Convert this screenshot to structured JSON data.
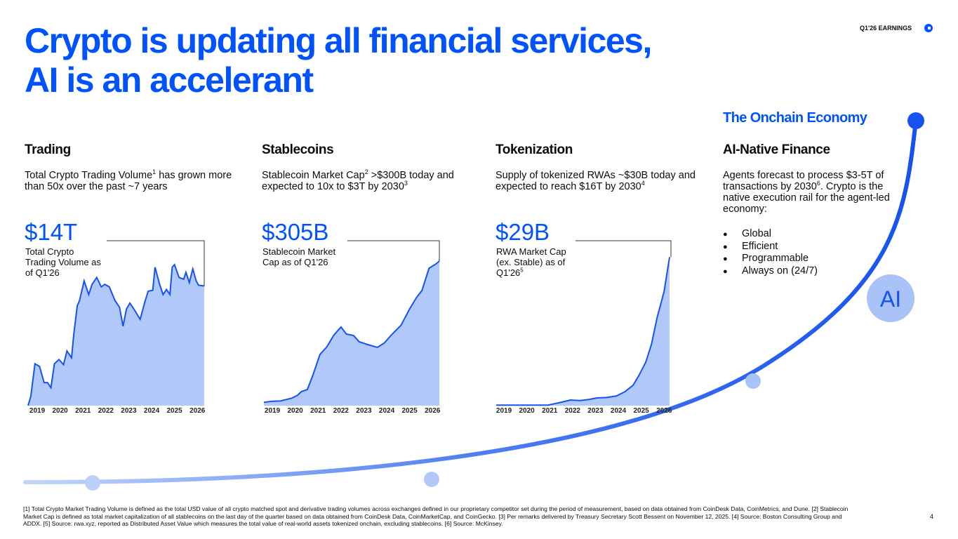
{
  "header": {
    "title": [
      "Crypto is updating all financial services,",
      "AI is an accelerant"
    ],
    "tag": "Q1'26 EARNINGS",
    "page": "4"
  },
  "columns": [
    {
      "heading": "Trading",
      "description": [
        "Total Crypto Trading Volume",
        "1",
        " has grown more than 50x over the past ~7 years"
      ],
      "figure": "$14T",
      "caption": [
        "Total Crypto Trading Volume as of Q1'26"
      ]
    },
    {
      "heading": "Stablecoins",
      "description": [
        "Stablecoin Market Cap",
        "2",
        " >$300B today and expected to 10x to $3T by 2030",
        "3"
      ],
      "figure": "$305B",
      "caption": [
        "Stablecoin Market Cap as of Q1'26"
      ]
    },
    {
      "heading": "Tokenization",
      "description": [
        "Supply of tokenized RWAs ~$30B today and expected to reach $16T by 2030",
        "4"
      ],
      "figure": "$29B",
      "caption": [
        "RWA Market Cap (ex. Stable) as of Q1'26",
        "5"
      ]
    },
    {
      "kicker": "The Onchain Economy",
      "heading": "AI-Native Finance",
      "description": [
        "Agents forecast to process $3-5T of transactions by 2030",
        "6",
        ". Crypto is the native execution rail for the agent-led economy:"
      ],
      "bullets": [
        "Global",
        "Efficient",
        "Programmable",
        "Always on (24/7)"
      ],
      "badge": "AI"
    }
  ],
  "footnotes": "[1] Total Crypto Market Trading Volume is defined as the total USD value of all crypto matched spot and derivative trading volumes across exchanges defined in our proprietary competitor set during the period of measurement, based on data obtained from CoinDesk Data, CoinMetrics, and Dune. [2] Stablecoin Market Cap is defined as total market capitalization of all stablecoins on the last day of the quarter based on data obtained from CoinDesk Data, CoinMarketCap, and CoinGecko. [3] Per remarks delivered by Treasury Secretary Scott Bessent on November 12, 2025. [4] Source: Boston Consulting Group and ADDX. [5] Source: rwa.xyz, reported as Distributed Asset Value which measures the total value of real-world assets tokenized onchain, excluding stablecoins. [6] Source: McKinsey.",
  "chart_data": [
    {
      "type": "area",
      "color": "#1652f0",
      "fill": "#b1c8fa",
      "x": [
        2018.6,
        2018.72,
        2018.9,
        2019.1,
        2019.3,
        2019.45,
        2019.6,
        2019.75,
        2019.95,
        2020.15,
        2020.3,
        2020.5,
        2020.6,
        2020.75,
        2020.85,
        2021.05,
        2021.25,
        2021.4,
        2021.6,
        2021.8,
        2021.95,
        2022.15,
        2022.4,
        2022.6,
        2022.75,
        2022.9,
        2023.05,
        2023.25,
        2023.5,
        2023.7,
        2023.85,
        2024.05,
        2024.15,
        2024.35,
        2024.5,
        2024.65,
        2024.8,
        2024.9,
        2025.0,
        2025.2,
        2025.4,
        2025.5,
        2025.65,
        2025.8,
        2025.95,
        2026.05,
        2026.3
      ],
      "values": [
        0,
        1.1,
        4.9,
        4.6,
        2.7,
        2.7,
        2.1,
        4.9,
        5.4,
        4.8,
        6.4,
        5.6,
        8.4,
        11.7,
        12.3,
        14.6,
        13.0,
        14.2,
        15.0,
        13.9,
        14.2,
        13.9,
        12.3,
        11.5,
        9.3,
        11.3,
        12.0,
        11.2,
        10.1,
        12.1,
        13.4,
        13.5,
        16.2,
        14.2,
        13.0,
        13.6,
        13.0,
        16.2,
        16.5,
        15.0,
        14.8,
        15.6,
        14.4,
        16.0,
        14.6,
        14.1,
        14.0
      ],
      "xlim": [
        2018.6,
        2026.3
      ],
      "ylim": [
        0,
        19.3
      ],
      "xticks": [
        2019,
        2020,
        2021,
        2022,
        2023,
        2024,
        2025,
        2026
      ]
    },
    {
      "type": "area",
      "color": "#1652f0",
      "fill": "#b1c8fa",
      "x": [
        2018.63,
        2018.94,
        2019.37,
        2019.86,
        2020.1,
        2020.28,
        2020.53,
        2020.77,
        2021.08,
        2021.38,
        2021.69,
        2022.0,
        2022.24,
        2022.55,
        2022.79,
        2023.16,
        2023.59,
        2023.89,
        2024.2,
        2024.63,
        2025.0,
        2025.3,
        2025.54,
        2025.85,
        2026.15,
        2026.3
      ],
      "values": [
        7,
        9,
        10,
        16,
        22,
        30,
        34,
        64,
        108,
        124,
        149,
        166,
        151,
        148,
        135,
        129,
        123,
        132,
        149,
        170,
        204,
        228,
        243,
        290,
        299,
        305
      ],
      "xlim": [
        2018.6,
        2026.3
      ],
      "ylim": [
        0,
        348
      ],
      "xticks": [
        2019,
        2020,
        2021,
        2022,
        2023,
        2024,
        2025,
        2026
      ]
    },
    {
      "type": "area",
      "color": "#1652f0",
      "fill": "#b1c8fa",
      "x": [
        2018.66,
        2020.31,
        2020.93,
        2021.23,
        2021.54,
        2021.9,
        2022.33,
        2022.7,
        2023.06,
        2023.49,
        2023.92,
        2024.28,
        2024.65,
        2024.9,
        2025.2,
        2025.45,
        2025.69,
        2026.0,
        2026.24
      ],
      "values": [
        0.1,
        0.1,
        0.1,
        0.4,
        0.7,
        1.1,
        1.0,
        1.2,
        1.5,
        1.6,
        1.9,
        2.7,
        4.0,
        5.9,
        8.5,
        12.0,
        17.1,
        22.3,
        29.0
      ],
      "xlim": [
        2018.6,
        2026.3
      ],
      "ylim": [
        0,
        32.2
      ],
      "xticks": [
        2019,
        2020,
        2021,
        2022,
        2023,
        2024,
        2025,
        2026
      ]
    }
  ]
}
